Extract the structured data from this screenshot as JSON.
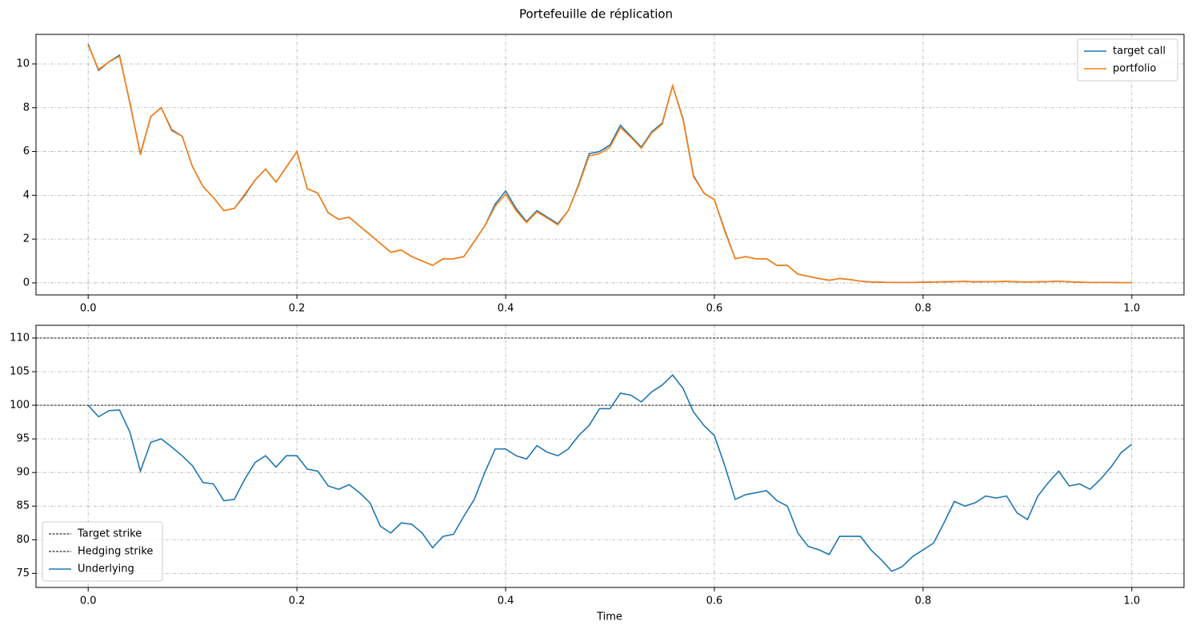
{
  "chart_data": [
    {
      "type": "line",
      "title": "Portefeuille de réplication",
      "xlim": [
        -0.05,
        1.05
      ],
      "ylim": [
        -0.55,
        11.35
      ],
      "xticks": [
        {
          "value": 0,
          "label": "0.0"
        },
        0.2,
        0.4,
        0.6,
        0.8,
        {
          "value": 1,
          "label": "1.0"
        }
      ],
      "yticks": [
        0,
        2,
        4,
        6,
        8,
        10
      ],
      "grid": true,
      "legend": "upper right",
      "x": [
        0,
        0.01,
        0.02,
        0.03,
        0.04,
        0.05,
        0.06,
        0.07,
        0.08,
        0.09,
        0.1,
        0.11,
        0.12,
        0.13,
        0.14,
        0.15,
        0.16,
        0.17,
        0.18,
        0.19,
        0.2,
        0.21,
        0.22,
        0.23,
        0.24,
        0.25,
        0.26,
        0.27,
        0.28,
        0.29,
        0.3,
        0.31,
        0.32,
        0.33,
        0.34,
        0.35,
        0.36,
        0.37,
        0.38,
        0.39,
        0.4,
        0.41,
        0.42,
        0.43,
        0.44,
        0.45,
        0.46,
        0.47,
        0.48,
        0.49,
        0.5,
        0.51,
        0.52,
        0.53,
        0.54,
        0.55,
        0.56,
        0.57,
        0.58,
        0.59,
        0.6,
        0.61,
        0.62,
        0.63,
        0.64,
        0.65,
        0.66,
        0.67,
        0.68,
        0.69,
        0.7,
        0.71,
        0.72,
        0.73,
        0.74,
        0.75,
        0.76,
        0.77,
        0.78,
        0.79,
        0.8,
        0.81,
        0.82,
        0.83,
        0.84,
        0.85,
        0.86,
        0.87,
        0.88,
        0.89,
        0.9,
        0.91,
        0.92,
        0.93,
        0.94,
        0.95,
        0.96,
        0.97,
        0.98,
        0.99,
        1
      ],
      "series": [
        {
          "name": "target call",
          "color": "#1f77b4",
          "values": [
            10.9,
            9.7,
            10.1,
            10.4,
            8.2,
            5.9,
            7.6,
            8.0,
            7.0,
            6.7,
            5.3,
            4.4,
            3.9,
            3.3,
            3.4,
            4.0,
            4.7,
            5.2,
            4.6,
            5.3,
            6.0,
            4.3,
            4.1,
            3.2,
            2.9,
            3.0,
            2.6,
            2.2,
            1.8,
            1.4,
            1.5,
            1.2,
            1.0,
            0.8,
            1.1,
            1.1,
            1.2,
            1.9,
            2.6,
            3.6,
            4.2,
            3.4,
            2.8,
            3.3,
            3.0,
            2.7,
            3.3,
            4.5,
            5.9,
            6.0,
            6.3,
            7.2,
            6.7,
            6.2,
            6.9,
            7.3,
            9.0,
            7.5,
            4.9,
            4.1,
            3.8,
            2.4,
            1.1,
            1.2,
            1.1,
            1.1,
            0.8,
            0.8,
            0.4,
            0.3,
            0.2,
            0.12,
            0.2,
            0.15,
            0.08,
            0.04,
            0.03,
            0.02,
            0.02,
            0.02,
            0.03,
            0.04,
            0.05,
            0.06,
            0.07,
            0.05,
            0.06,
            0.06,
            0.07,
            0.05,
            0.04,
            0.05,
            0.06,
            0.08,
            0.05,
            0.03,
            0.02,
            0.02,
            0.02,
            0.01,
            0.01
          ]
        },
        {
          "name": "portfolio",
          "color": "#ff7f0e",
          "values": [
            10.85,
            9.75,
            10.1,
            10.35,
            8.25,
            5.85,
            7.6,
            8.0,
            6.95,
            6.7,
            5.3,
            4.4,
            3.9,
            3.3,
            3.4,
            4.05,
            4.7,
            5.2,
            4.6,
            5.3,
            6.0,
            4.3,
            4.1,
            3.2,
            2.9,
            3.0,
            2.6,
            2.2,
            1.8,
            1.4,
            1.5,
            1.2,
            1.0,
            0.8,
            1.1,
            1.1,
            1.2,
            1.9,
            2.6,
            3.5,
            4.05,
            3.3,
            2.75,
            3.25,
            2.95,
            2.65,
            3.3,
            4.45,
            5.8,
            5.9,
            6.2,
            7.1,
            6.65,
            6.15,
            6.85,
            7.25,
            9.0,
            7.45,
            4.85,
            4.1,
            3.8,
            2.35,
            1.1,
            1.2,
            1.1,
            1.1,
            0.8,
            0.8,
            0.4,
            0.3,
            0.2,
            0.12,
            0.2,
            0.15,
            0.08,
            0.04,
            0.03,
            0.02,
            0.02,
            0.02,
            0.03,
            0.04,
            0.05,
            0.06,
            0.07,
            0.05,
            0.06,
            0.06,
            0.07,
            0.05,
            0.04,
            0.05,
            0.06,
            0.08,
            0.05,
            0.03,
            0.02,
            0.02,
            0.02,
            0.01,
            0.01
          ]
        }
      ]
    },
    {
      "type": "line",
      "xlabel": "Time",
      "xlim": [
        -0.05,
        1.05
      ],
      "ylim": [
        72.9,
        111.9
      ],
      "xticks": [
        {
          "value": 0,
          "label": "0.0"
        },
        0.2,
        0.4,
        0.6,
        0.8,
        {
          "value": 1,
          "label": "1.0"
        }
      ],
      "yticks": [
        75,
        80,
        85,
        90,
        95,
        100,
        105,
        110
      ],
      "grid": true,
      "legend": "lower left",
      "hlines": [
        {
          "name": "Target strike",
          "color": "#000000",
          "value": 110
        },
        {
          "name": "Hedging strike",
          "color": "#000000",
          "value": 100
        }
      ],
      "x": [
        0,
        0.01,
        0.02,
        0.03,
        0.04,
        0.05,
        0.06,
        0.07,
        0.08,
        0.09,
        0.1,
        0.11,
        0.12,
        0.13,
        0.14,
        0.15,
        0.16,
        0.17,
        0.18,
        0.19,
        0.2,
        0.21,
        0.22,
        0.23,
        0.24,
        0.25,
        0.26,
        0.27,
        0.28,
        0.29,
        0.3,
        0.31,
        0.32,
        0.33,
        0.34,
        0.35,
        0.36,
        0.37,
        0.38,
        0.39,
        0.4,
        0.41,
        0.42,
        0.43,
        0.44,
        0.45,
        0.46,
        0.47,
        0.48,
        0.49,
        0.5,
        0.51,
        0.52,
        0.53,
        0.54,
        0.55,
        0.56,
        0.57,
        0.58,
        0.59,
        0.6,
        0.61,
        0.62,
        0.63,
        0.64,
        0.65,
        0.66,
        0.67,
        0.68,
        0.69,
        0.7,
        0.71,
        0.72,
        0.73,
        0.74,
        0.75,
        0.76,
        0.77,
        0.78,
        0.79,
        0.8,
        0.81,
        0.82,
        0.83,
        0.84,
        0.85,
        0.86,
        0.87,
        0.88,
        0.89,
        0.9,
        0.91,
        0.92,
        0.93,
        0.94,
        0.95,
        0.96,
        0.97,
        0.98,
        0.99,
        1
      ],
      "series": [
        {
          "name": "Underlying",
          "color": "#1f77b4",
          "values": [
            100,
            98.3,
            99.2,
            99.3,
            96,
            90.2,
            94.5,
            95,
            93.8,
            92.5,
            91,
            88.5,
            88.3,
            85.8,
            86,
            89,
            91.5,
            92.5,
            90.8,
            92.5,
            92.5,
            90.5,
            90.2,
            88,
            87.5,
            88.2,
            87,
            85.5,
            82,
            81,
            82.5,
            82.3,
            81,
            78.8,
            80.5,
            80.8,
            83.5,
            86,
            90,
            93.5,
            93.5,
            92.5,
            92,
            94,
            93,
            92.5,
            93.5,
            95.5,
            97,
            99.5,
            99.5,
            101.8,
            101.5,
            100.5,
            102,
            103,
            104.5,
            102.5,
            99,
            97,
            95.5,
            91,
            86,
            86.7,
            87,
            87.3,
            85.8,
            85,
            81,
            79,
            78.5,
            77.8,
            80.5,
            80.5,
            80.5,
            78.5,
            77,
            75.3,
            76,
            77.5,
            78.5,
            79.5,
            82.5,
            85.7,
            85,
            85.5,
            86.5,
            86.2,
            86.5,
            84,
            83,
            86.5,
            88.5,
            90.2,
            88,
            88.3,
            87.5,
            89,
            90.8,
            93,
            94.2
          ]
        }
      ]
    }
  ]
}
